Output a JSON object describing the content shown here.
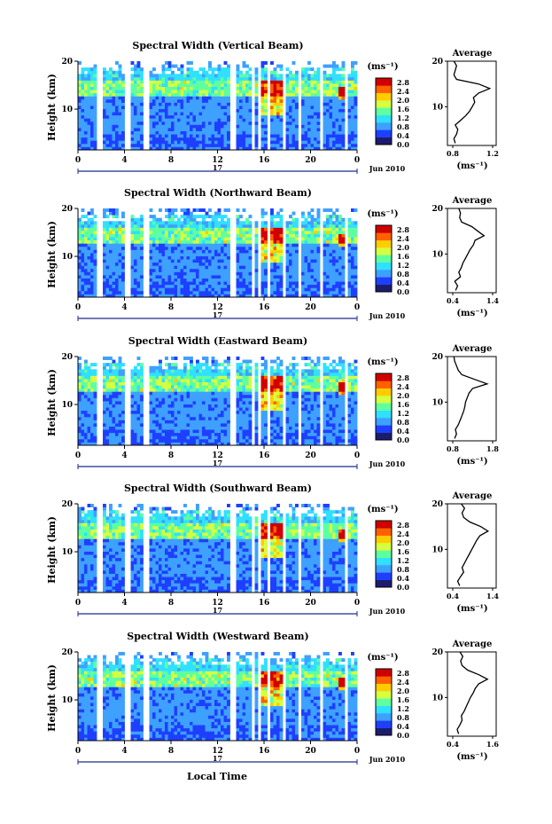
{
  "chart_data": {
    "type": "heatmap",
    "xlabel": "Local Time",
    "date_label": "Jun 2010",
    "day_label": "17",
    "x_ticks": [
      "0",
      "4",
      "8",
      "12",
      "16",
      "20",
      "0"
    ],
    "xlim": [
      0,
      24
    ],
    "colorbar": {
      "unit": "(ms⁻¹)",
      "ticks": [
        "2.8",
        "2.4",
        "2.0",
        "1.6",
        "1.2",
        "0.8",
        "0.4",
        "0.0"
      ],
      "range": [
        0,
        3.0
      ],
      "colors": [
        "#1c1c6e",
        "#1f3fff",
        "#3ea0ff",
        "#30e0ff",
        "#5effa0",
        "#d6ff40",
        "#ffcc00",
        "#ff6000",
        "#d00000"
      ]
    },
    "panels": [
      {
        "title": "Spectral Width (Vertical Beam)",
        "ylabel": "Height (km)",
        "y_ticks": [
          "20",
          "10"
        ],
        "ylim": [
          1.5,
          20
        ],
        "profile": {
          "title": "Average",
          "xlabel": "(ms⁻¹)",
          "x_ticks": [
            "0.8",
            "1.2"
          ],
          "xlim": [
            0.6,
            1.35
          ],
          "heights": [
            2,
            3,
            4,
            5,
            6,
            7,
            8,
            9,
            10,
            11,
            12,
            13,
            14,
            15,
            16,
            17,
            18,
            19,
            20
          ],
          "values": [
            0.72,
            0.7,
            0.74,
            0.76,
            0.72,
            0.8,
            0.88,
            0.94,
            0.98,
            1.02,
            1.0,
            1.08,
            1.25,
            1.08,
            0.74,
            0.7,
            0.72,
            0.74,
            0.7
          ]
        }
      },
      {
        "title": "Spectral Width (Northward Beam)",
        "ylabel": "Height (km)",
        "y_ticks": [
          "20",
          "10"
        ],
        "ylim": [
          1.5,
          20
        ],
        "profile": {
          "title": "Average",
          "xlabel": "(ms⁻¹)",
          "x_ticks": [
            "0.4",
            "1.4"
          ],
          "xlim": [
            0.3,
            1.5
          ],
          "heights": [
            2,
            3,
            4,
            5,
            6,
            7,
            8,
            9,
            10,
            11,
            12,
            13,
            14,
            15,
            16,
            17,
            18,
            19,
            20
          ],
          "values": [
            0.5,
            0.55,
            0.48,
            0.62,
            0.58,
            0.64,
            0.68,
            0.74,
            0.8,
            0.86,
            0.94,
            0.98,
            1.2,
            1.05,
            0.9,
            0.65,
            0.6,
            0.62,
            0.58
          ]
        }
      },
      {
        "title": "Spectral Width (Eastward Beam)",
        "ylabel": "Height (km)",
        "y_ticks": [
          "20",
          "10"
        ],
        "ylim": [
          1.5,
          20
        ],
        "profile": {
          "title": "Average",
          "xlabel": "(ms⁻¹)",
          "x_ticks": [
            "0.8",
            "1.8"
          ],
          "xlim": [
            0.6,
            1.95
          ],
          "heights": [
            2,
            3,
            4,
            5,
            6,
            7,
            8,
            9,
            10,
            11,
            12,
            13,
            14,
            15,
            16,
            17,
            18,
            19,
            20
          ],
          "values": [
            0.8,
            0.85,
            0.82,
            0.9,
            0.95,
            1.0,
            1.05,
            1.08,
            1.1,
            1.15,
            1.2,
            1.3,
            1.7,
            1.35,
            1.0,
            0.9,
            0.85,
            0.8,
            0.78
          ]
        }
      },
      {
        "title": "Spectral Width (Southward Beam)",
        "ylabel": "Height (km)",
        "y_ticks": [
          "20",
          "10"
        ],
        "ylim": [
          1.5,
          20
        ],
        "profile": {
          "title": "Average",
          "xlabel": "(ms⁻¹)",
          "x_ticks": [
            "0.4",
            "1.4"
          ],
          "xlim": [
            0.3,
            1.5
          ],
          "heights": [
            2,
            3,
            4,
            5,
            6,
            7,
            8,
            9,
            10,
            11,
            12,
            13,
            14,
            15,
            16,
            17,
            18,
            19,
            20
          ],
          "values": [
            0.6,
            0.55,
            0.62,
            0.7,
            0.66,
            0.72,
            0.78,
            0.84,
            0.9,
            0.96,
            1.02,
            1.1,
            1.3,
            1.12,
            0.85,
            0.7,
            0.66,
            0.72,
            0.64
          ]
        }
      },
      {
        "title": "Spectral Width (Westward Beam)",
        "ylabel": "Height (km)",
        "y_ticks": [
          "20",
          "10"
        ],
        "ylim": [
          1.5,
          20
        ],
        "profile": {
          "title": "Average",
          "xlabel": "(ms⁻¹)",
          "x_ticks": [
            "0.4",
            "1.6"
          ],
          "xlim": [
            0.3,
            1.7
          ],
          "heights": [
            2,
            3,
            4,
            5,
            6,
            7,
            8,
            9,
            10,
            11,
            12,
            13,
            14,
            15,
            16,
            17,
            18,
            19,
            20
          ],
          "values": [
            0.62,
            0.58,
            0.66,
            0.72,
            0.7,
            0.78,
            0.84,
            0.9,
            0.96,
            1.04,
            1.1,
            1.2,
            1.45,
            1.2,
            0.88,
            0.72,
            0.68,
            0.74,
            0.66
          ]
        }
      }
    ]
  }
}
